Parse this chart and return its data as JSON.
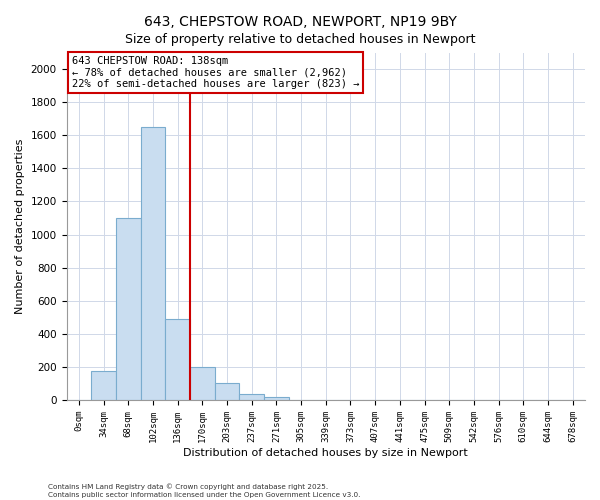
{
  "title": "643, CHEPSTOW ROAD, NEWPORT, NP19 9BY",
  "subtitle": "Size of property relative to detached houses in Newport",
  "xlabel": "Distribution of detached houses by size in Newport",
  "ylabel": "Number of detached properties",
  "bar_labels": [
    "0sqm",
    "34sqm",
    "68sqm",
    "102sqm",
    "136sqm",
    "170sqm",
    "203sqm",
    "237sqm",
    "271sqm",
    "305sqm",
    "339sqm",
    "373sqm",
    "407sqm",
    "441sqm",
    "475sqm",
    "509sqm",
    "542sqm",
    "576sqm",
    "610sqm",
    "644sqm",
    "678sqm"
  ],
  "bar_values": [
    0,
    175,
    1100,
    1650,
    490,
    200,
    100,
    35,
    15,
    0,
    0,
    0,
    0,
    0,
    0,
    0,
    0,
    0,
    0,
    0,
    0
  ],
  "bar_color": "#c9ddf0",
  "bar_edge_color": "#7aacce",
  "vline_color": "#cc0000",
  "vline_x_index": 4,
  "annotation_line1": "643 CHEPSTOW ROAD: 138sqm",
  "annotation_line2": "← 78% of detached houses are smaller (2,962)",
  "annotation_line3": "22% of semi-detached houses are larger (823) →",
  "ylim": [
    0,
    2100
  ],
  "yticks": [
    0,
    200,
    400,
    600,
    800,
    1000,
    1200,
    1400,
    1600,
    1800,
    2000
  ],
  "footer_line1": "Contains HM Land Registry data © Crown copyright and database right 2025.",
  "footer_line2": "Contains public sector information licensed under the Open Government Licence v3.0.",
  "grid_color": "#d0d8e8",
  "title_fontsize": 10,
  "subtitle_fontsize": 9
}
